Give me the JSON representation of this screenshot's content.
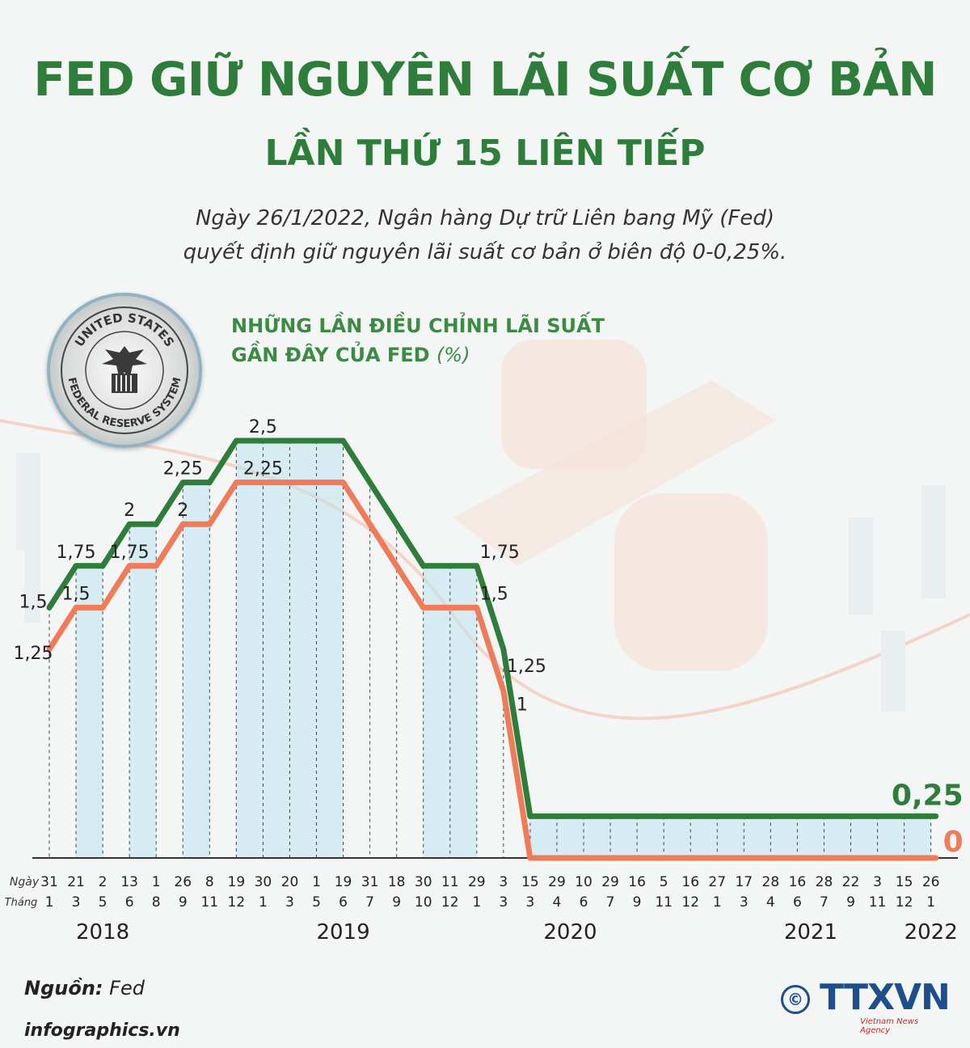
{
  "header": {
    "title": "FED GIỮ NGUYÊN LÃI SUẤT CƠ BẢN",
    "subtitle": "LẦN THỨ 15 LIÊN TIẾP",
    "lead_line1": "Ngày 26/1/2022, Ngân hàng Dự trữ Liên bang Mỹ (Fed)",
    "lead_line2": "quyết định giữ nguyên lãi suất cơ bản ở biên độ 0-0,25%."
  },
  "chart_heading": {
    "line1": "NHỮNG LẦN ĐIỀU CHỈNH LÃI SUẤT",
    "line2": "GẦN ĐÂY CỦA FED",
    "unit": "(%)"
  },
  "seal": {
    "top_text": "UNITED STATES",
    "bottom_text": "FEDERAL RESERVE SYSTEM"
  },
  "axis_labels": {
    "day": "Ngày",
    "month": "Tháng"
  },
  "colors": {
    "upper": "#2e7d3b",
    "lower": "#ef7b58",
    "band": "#bfe3ee",
    "title": "#2e7d3b"
  },
  "chart_data": {
    "type": "line",
    "y_unit": "%",
    "ylim": [
      0,
      2.5
    ],
    "dates": [
      {
        "day": "31",
        "month": "1"
      },
      {
        "day": "21",
        "month": "3"
      },
      {
        "day": "2",
        "month": "5"
      },
      {
        "day": "13",
        "month": "6"
      },
      {
        "day": "1",
        "month": "8"
      },
      {
        "day": "26",
        "month": "9"
      },
      {
        "day": "8",
        "month": "11"
      },
      {
        "day": "19",
        "month": "12"
      },
      {
        "day": "30",
        "month": "1"
      },
      {
        "day": "20",
        "month": "3"
      },
      {
        "day": "1",
        "month": "5"
      },
      {
        "day": "19",
        "month": "6"
      },
      {
        "day": "31",
        "month": "7"
      },
      {
        "day": "18",
        "month": "9"
      },
      {
        "day": "30",
        "month": "10"
      },
      {
        "day": "11",
        "month": "12"
      },
      {
        "day": "29",
        "month": "1"
      },
      {
        "day": "3",
        "month": "3"
      },
      {
        "day": "15",
        "month": "3"
      },
      {
        "day": "29",
        "month": "4"
      },
      {
        "day": "10",
        "month": "6"
      },
      {
        "day": "29",
        "month": "7"
      },
      {
        "day": "16",
        "month": "9"
      },
      {
        "day": "5",
        "month": "11"
      },
      {
        "day": "16",
        "month": "12"
      },
      {
        "day": "27",
        "month": "1"
      },
      {
        "day": "17",
        "month": "3"
      },
      {
        "day": "28",
        "month": "4"
      },
      {
        "day": "16",
        "month": "6"
      },
      {
        "day": "28",
        "month": "7"
      },
      {
        "day": "22",
        "month": "9"
      },
      {
        "day": "3",
        "month": "11"
      },
      {
        "day": "15",
        "month": "12"
      },
      {
        "day": "26",
        "month": "1"
      }
    ],
    "years": [
      {
        "label": "2018",
        "at_index": 2
      },
      {
        "label": "2019",
        "at_index": 11
      },
      {
        "label": "2020",
        "at_index": 19.5
      },
      {
        "label": "2021",
        "at_index": 28.5
      },
      {
        "label": "2022",
        "at_index": 33
      }
    ],
    "series": [
      {
        "key": "upper",
        "values": [
          1.5,
          1.75,
          1.75,
          2,
          2,
          2.25,
          2.25,
          2.5,
          2.5,
          2.5,
          2.5,
          2.5,
          2.25,
          2,
          1.75,
          1.75,
          1.75,
          1.25,
          0.25,
          0.25,
          0.25,
          0.25,
          0.25,
          0.25,
          0.25,
          0.25,
          0.25,
          0.25,
          0.25,
          0.25,
          0.25,
          0.25,
          0.25,
          0.25
        ]
      },
      {
        "key": "lower",
        "values": [
          1.25,
          1.5,
          1.5,
          1.75,
          1.75,
          2,
          2,
          2.25,
          2.25,
          2.25,
          2.25,
          2.25,
          2,
          1.75,
          1.5,
          1.5,
          1.5,
          1,
          0,
          0,
          0,
          0,
          0,
          0,
          0,
          0,
          0,
          0,
          0,
          0,
          0,
          0,
          0,
          0
        ]
      }
    ],
    "data_labels": [
      {
        "text": "1,5",
        "series": "upper",
        "index": 0
      },
      {
        "text": "1,25",
        "series": "lower",
        "index": 0
      },
      {
        "text": "1,75",
        "series": "upper",
        "index": 1
      },
      {
        "text": "1,5",
        "series": "lower",
        "index": 1
      },
      {
        "text": "2",
        "series": "upper",
        "index": 3
      },
      {
        "text": "1,75",
        "series": "lower",
        "index": 3
      },
      {
        "text": "2,25",
        "series": "upper",
        "index": 5
      },
      {
        "text": "2",
        "series": "lower",
        "index": 5
      },
      {
        "text": "2,5",
        "series": "upper",
        "index": 8
      },
      {
        "text": "2,25",
        "series": "lower",
        "index": 8
      },
      {
        "text": "1,75",
        "series": "upper",
        "index": 16
      },
      {
        "text": "1,5",
        "series": "lower",
        "index": 16
      },
      {
        "text": "1,25",
        "series": "upper",
        "index": 17
      },
      {
        "text": "1",
        "series": "lower",
        "index": 17
      },
      {
        "text": "0,25",
        "series": "upper",
        "index": 33
      },
      {
        "text": "0",
        "series": "lower",
        "index": 33
      }
    ]
  },
  "footer": {
    "source_label": "Nguồn:",
    "source_value": "Fed",
    "site": "infographics.vn",
    "logo_symbol": "©",
    "logo_text": "TTXVN",
    "agency": "Vietnam News Agency"
  }
}
